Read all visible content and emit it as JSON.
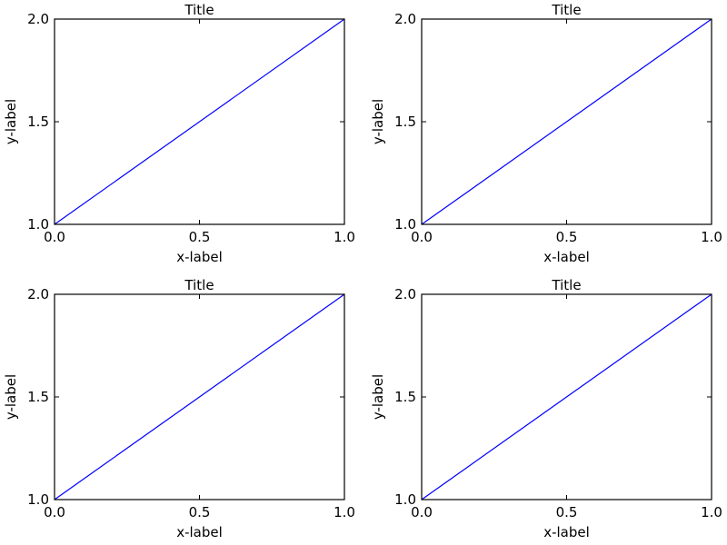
{
  "figure": {
    "background": "#ffffff"
  },
  "chart_data": [
    {
      "type": "line",
      "title": "Title",
      "xlabel": "x-label",
      "ylabel": "y-label",
      "xlim": [
        0.0,
        1.0
      ],
      "ylim": [
        1.0,
        2.0
      ],
      "xticks": [
        0.0,
        0.5,
        1.0
      ],
      "yticks": [
        1.0,
        1.5,
        2.0
      ],
      "xtick_labels": [
        "0.0",
        "0.5",
        "1.0"
      ],
      "ytick_labels": [
        "1.0",
        "1.5",
        "2.0"
      ],
      "grid": false,
      "series": [
        {
          "x": [
            0.0,
            1.0
          ],
          "y": [
            1.0,
            2.0
          ],
          "color": "#0000ff"
        }
      ]
    },
    {
      "type": "line",
      "title": "Title",
      "xlabel": "x-label",
      "ylabel": "y-label",
      "xlim": [
        0.0,
        1.0
      ],
      "ylim": [
        1.0,
        2.0
      ],
      "xticks": [
        0.0,
        0.5,
        1.0
      ],
      "yticks": [
        1.0,
        1.5,
        2.0
      ],
      "xtick_labels": [
        "0.0",
        "0.5",
        "1.0"
      ],
      "ytick_labels": [
        "1.0",
        "1.5",
        "2.0"
      ],
      "grid": false,
      "series": [
        {
          "x": [
            0.0,
            1.0
          ],
          "y": [
            1.0,
            2.0
          ],
          "color": "#0000ff"
        }
      ]
    },
    {
      "type": "line",
      "title": "Title",
      "xlabel": "x-label",
      "ylabel": "y-label",
      "xlim": [
        0.0,
        1.0
      ],
      "ylim": [
        1.0,
        2.0
      ],
      "xticks": [
        0.0,
        0.5,
        1.0
      ],
      "yticks": [
        1.0,
        1.5,
        2.0
      ],
      "xtick_labels": [
        "0.0",
        "0.5",
        "1.0"
      ],
      "ytick_labels": [
        "1.0",
        "1.5",
        "2.0"
      ],
      "grid": false,
      "series": [
        {
          "x": [
            0.0,
            1.0
          ],
          "y": [
            1.0,
            2.0
          ],
          "color": "#0000ff"
        }
      ]
    },
    {
      "type": "line",
      "title": "Title",
      "xlabel": "x-label",
      "ylabel": "y-label",
      "xlim": [
        0.0,
        1.0
      ],
      "ylim": [
        1.0,
        2.0
      ],
      "xticks": [
        0.0,
        0.5,
        1.0
      ],
      "yticks": [
        1.0,
        1.5,
        2.0
      ],
      "xtick_labels": [
        "0.0",
        "0.5",
        "1.0"
      ],
      "ytick_labels": [
        "1.0",
        "1.5",
        "2.0"
      ],
      "grid": false,
      "series": [
        {
          "x": [
            0.0,
            1.0
          ],
          "y": [
            1.0,
            2.0
          ],
          "color": "#0000ff"
        }
      ]
    }
  ]
}
